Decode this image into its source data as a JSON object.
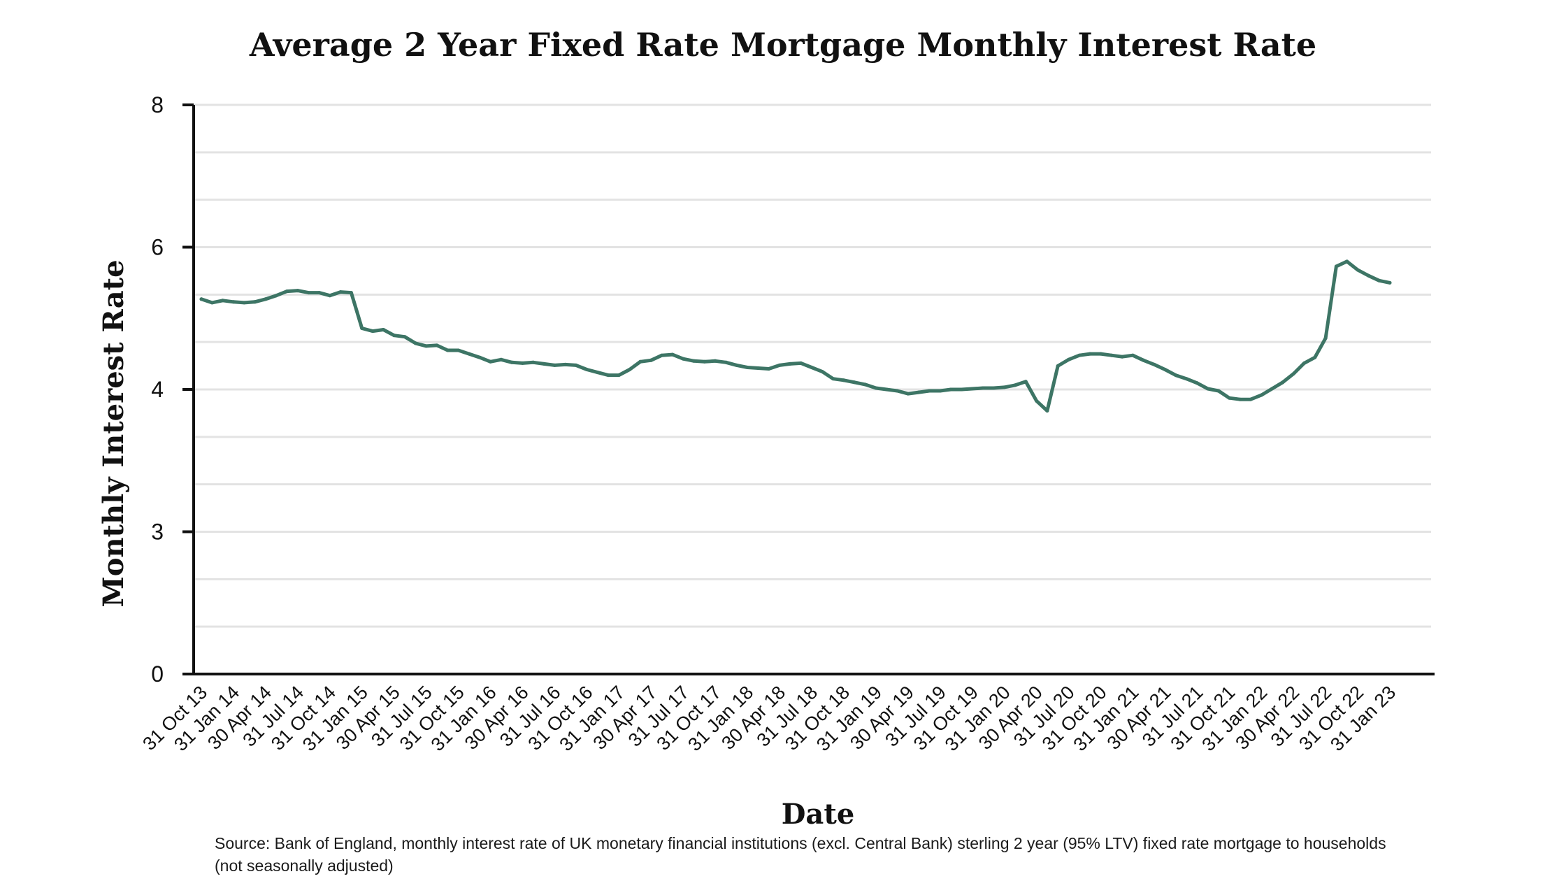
{
  "chart_data": {
    "type": "line",
    "title": "Average 2 Year Fixed Rate Mortgage Monthly Interest Rate",
    "xlabel": "Date",
    "ylabel": "Monthly Interest Rate",
    "y_ticks": [
      "0",
      "3",
      "4",
      "6",
      "8"
    ],
    "x_ticks": [
      "31 Oct 13",
      "31 Jan 14",
      "30 Apr 14",
      "31 Jul 14",
      "31 Oct 14",
      "31 Jan 15",
      "30 Apr 15",
      "31 Jul 15",
      "31 Oct 15",
      "31 Jan 16",
      "30 Apr 16",
      "31 Jul 16",
      "31 Oct 16",
      "31 Jan 17",
      "30 Apr 17",
      "31 Jul 17",
      "31 Oct 17",
      "31 Jan 18",
      "30 Apr 18",
      "31 Jul 18",
      "31 Oct 18",
      "31 Jan 19",
      "30 Apr 19",
      "31 Jul 19",
      "31 Oct 19",
      "31 Jan 20",
      "30 Apr 20",
      "31 Jul 20",
      "31 Oct 20",
      "31 Jan 21",
      "30 Apr 21",
      "31 Jul 21",
      "31 Oct 21",
      "31 Jan 22",
      "30 Apr 22",
      "31 Jul 22",
      "31 Oct 22",
      "31 Jan 23"
    ],
    "gridlines": true,
    "legend": "none",
    "line_color": "#3d7565",
    "series": [
      {
        "name": "Monthly Interest Rate",
        "start_month": "Oct 13",
        "values": [
          5.27,
          5.22,
          5.25,
          5.23,
          5.22,
          5.23,
          5.27,
          5.32,
          5.38,
          5.39,
          5.36,
          5.36,
          5.32,
          5.37,
          5.36,
          4.86,
          4.82,
          4.84,
          4.76,
          4.74,
          4.65,
          4.61,
          4.62,
          4.55,
          4.55,
          4.5,
          4.45,
          4.39,
          4.42,
          4.38,
          4.37,
          4.38,
          4.36,
          4.34,
          4.35,
          4.34,
          4.28,
          4.24,
          4.2,
          4.2,
          4.28,
          4.39,
          4.41,
          4.48,
          4.49,
          4.43,
          4.4,
          4.39,
          4.4,
          4.38,
          4.34,
          4.31,
          4.3,
          4.29,
          4.34,
          4.36,
          4.37,
          4.31,
          4.25,
          4.15,
          4.13,
          4.1,
          4.07,
          4.02,
          4.0,
          3.99,
          3.97,
          3.98,
          3.99,
          3.99,
          4.0,
          4.0,
          4.01,
          4.02,
          4.02,
          4.03,
          4.06,
          4.11,
          3.92,
          3.85,
          4.33,
          4.42,
          4.48,
          4.5,
          4.5,
          4.48,
          4.46,
          4.48,
          4.41,
          4.35,
          4.28,
          4.2,
          4.15,
          4.09,
          4.01,
          3.99,
          3.94,
          3.93,
          3.93,
          3.96,
          4.01,
          4.1,
          4.22,
          4.37,
          4.45,
          4.72,
          5.73,
          5.8,
          5.68,
          5.6,
          5.53,
          5.5
        ]
      }
    ]
  },
  "source_note": "Source: Bank of England, monthly interest rate of UK monetary financial institutions (excl. Central Bank) sterling 2 year (95% LTV) fixed rate mortgage to households (not seasonally adjusted)"
}
